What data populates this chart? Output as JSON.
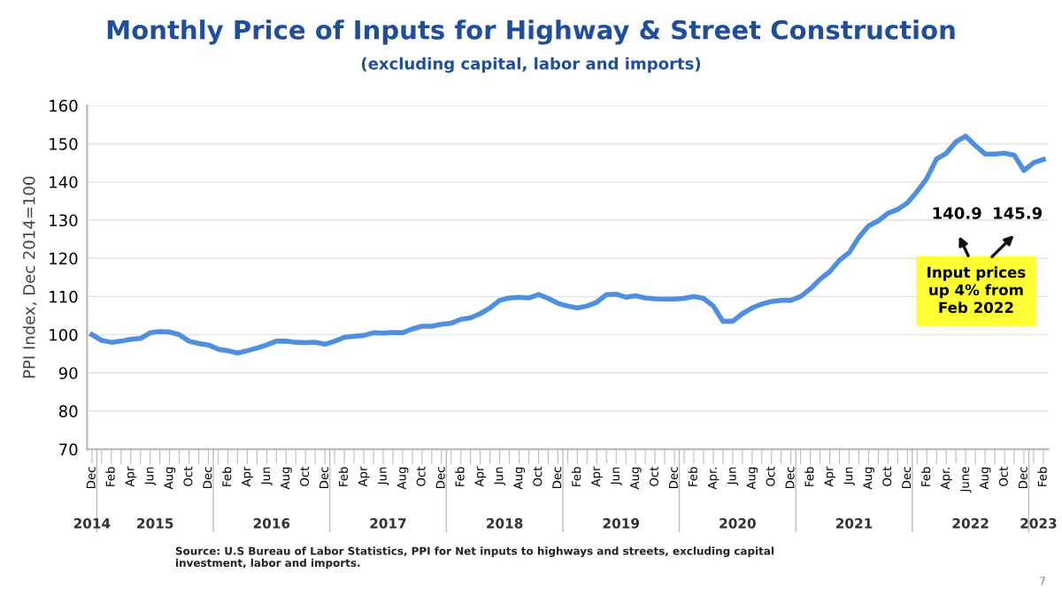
{
  "chart_data": {
    "type": "line",
    "title": "Monthly Price of Inputs for Highway & Street Construction",
    "subtitle": "(excluding capital, labor and imports)",
    "ylabel": "PPI Index, Dec 2014=100",
    "categories": [
      "Dec",
      null,
      "Feb",
      null,
      "Apr",
      null,
      "Jun",
      null,
      "Aug",
      null,
      "Oct",
      null,
      "Dec",
      null,
      "Feb",
      null,
      "Apr",
      null,
      "Jun",
      null,
      "Aug",
      null,
      "Oct",
      null,
      "Dec",
      null,
      "Feb",
      null,
      "Apr",
      null,
      "Jun",
      null,
      "Aug",
      null,
      "Oct",
      null,
      "Dec",
      null,
      "Feb",
      null,
      "Apr",
      null,
      "Jun",
      null,
      "Aug",
      null,
      "Oct",
      null,
      "Dec",
      null,
      "Feb",
      null,
      "Apr",
      null,
      "Jun",
      null,
      "Aug",
      null,
      "Oct",
      null,
      "Dec",
      null,
      "Feb",
      null,
      "Apr.",
      null,
      "Jun",
      null,
      "Aug",
      null,
      "Oct",
      null,
      "Dec",
      null,
      "Feb",
      null,
      "Apr",
      null,
      "Jun",
      null,
      "Aug",
      null,
      "Oct",
      null,
      "Dec",
      null,
      "Feb",
      null,
      "Apr.",
      null,
      "June",
      null,
      "Aug",
      null,
      "Oct",
      null,
      "Dec",
      null,
      "Feb"
    ],
    "series": [
      {
        "color": "#4f8fe0",
        "values": [
          100,
          98.5,
          98,
          98.3,
          98.8,
          99,
          100.5,
          100.8,
          100.7,
          100,
          98.3,
          97.7,
          97.3,
          96.2,
          95.8,
          95.2,
          95.8,
          96.5,
          97.3,
          98.3,
          98.3,
          98,
          97.9,
          98,
          97.5,
          98.3,
          99.3,
          99.6,
          99.8,
          100.5,
          100.4,
          100.6,
          100.5,
          101.5,
          102.2,
          102.2,
          102.7,
          103,
          104,
          104.4,
          105.5,
          107,
          109,
          109.6,
          109.8,
          109.6,
          110.5,
          109.5,
          108.2,
          107.5,
          107,
          107.5,
          108.5,
          110.5,
          110.6,
          109.8,
          110.2,
          109.6,
          109.4,
          109.3,
          109.3,
          109.5,
          110,
          109.5,
          107.5,
          103.5,
          103.5,
          105.5,
          107,
          108,
          108.7,
          109,
          109,
          110,
          112,
          114.5,
          116.5,
          119.5,
          121.5,
          125.5,
          128.5,
          129.8,
          131.8,
          132.8,
          134.5,
          137.5,
          140.9,
          146,
          147.5,
          150.5,
          152,
          149.5,
          147.3,
          147.3,
          147.5,
          147,
          143,
          145,
          145.9
        ]
      }
    ],
    "ylim": [
      70,
      160
    ],
    "yticks": [
      70,
      80,
      90,
      100,
      110,
      120,
      130,
      140,
      150,
      160
    ],
    "grid": "y",
    "legend": false,
    "marker": "none",
    "line_style": "solid",
    "annotations": [
      "2014",
      "2015",
      "2016",
      "2017",
      "2018",
      "2019",
      "2020",
      "2021",
      "2022",
      "2023",
      "140.9",
      "145.9",
      "Input prices\nup 4% from\nFeb 2022",
      "Source: U.S Bureau of Labor Statistics, PPI for Net inputs to highways and streets, excluding capital\ninvestment, labor and imports.",
      "7"
    ]
  }
}
